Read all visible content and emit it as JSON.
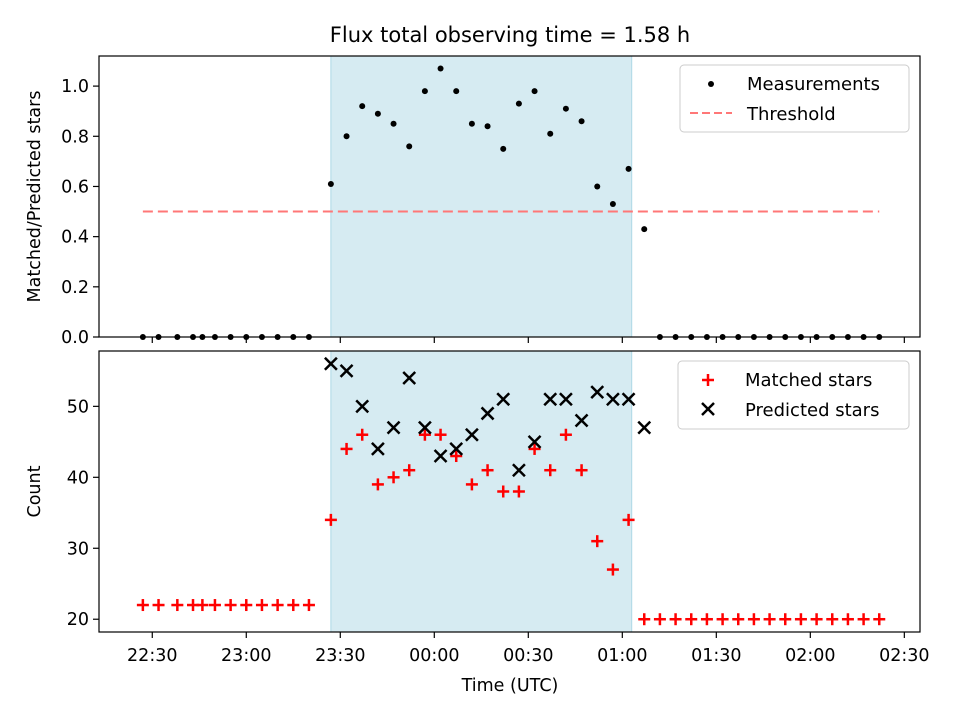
{
  "figure": {
    "title": "Flux total observing time = 1.58 h",
    "xlabel": "Time (UTC)",
    "x_tick_labels": [
      "22:30",
      "23:00",
      "23:30",
      "00:00",
      "00:30",
      "01:00",
      "01:30",
      "02:00",
      "02:30"
    ]
  },
  "chart_data": [
    {
      "type": "scatter",
      "panel": "top",
      "ylabel": "Matched/Predicted stars",
      "ylim": [
        0,
        1.12
      ],
      "y_ticks": [
        0.0,
        0.2,
        0.4,
        0.6,
        0.8,
        1.0
      ],
      "y_tick_labels": [
        "0.0",
        "0.2",
        "0.4",
        "0.6",
        "0.8",
        "1.0"
      ],
      "x_range": [
        "22:13",
        "02:35"
      ],
      "shaded_region": {
        "start": "23:27",
        "end": "01:03",
        "color": "#add8e6"
      },
      "legend": {
        "position": "top-right",
        "entries": [
          {
            "label": "Measurements",
            "marker": "dot",
            "color": "#000000"
          },
          {
            "label": "Threshold",
            "marker": "dashed-line",
            "color": "#ff7777"
          }
        ]
      },
      "threshold": {
        "value": 0.5,
        "x_start": "22:27",
        "x_end": "02:22",
        "color": "#ff7777"
      },
      "series": [
        {
          "name": "Measurements",
          "color": "#000000",
          "points": [
            [
              "22:27",
              0
            ],
            [
              "22:32",
              0
            ],
            [
              "22:38",
              0
            ],
            [
              "22:43",
              0
            ],
            [
              "22:46",
              0
            ],
            [
              "22:50",
              0
            ],
            [
              "22:55",
              0
            ],
            [
              "23:00",
              0
            ],
            [
              "23:05",
              0
            ],
            [
              "23:10",
              0
            ],
            [
              "23:15",
              0
            ],
            [
              "23:20",
              0
            ],
            [
              "23:27",
              0.61
            ],
            [
              "23:32",
              0.8
            ],
            [
              "23:37",
              0.92
            ],
            [
              "23:42",
              0.89
            ],
            [
              "23:47",
              0.85
            ],
            [
              "23:52",
              0.76
            ],
            [
              "23:57",
              0.98
            ],
            [
              "00:02",
              1.07
            ],
            [
              "00:07",
              0.98
            ],
            [
              "00:12",
              0.85
            ],
            [
              "00:17",
              0.84
            ],
            [
              "00:22",
              0.75
            ],
            [
              "00:27",
              0.93
            ],
            [
              "00:32",
              0.98
            ],
            [
              "00:37",
              0.81
            ],
            [
              "00:42",
              0.91
            ],
            [
              "00:47",
              0.86
            ],
            [
              "00:52",
              0.6
            ],
            [
              "00:57",
              0.53
            ],
            [
              "01:02",
              0.67
            ],
            [
              "01:07",
              0.43
            ],
            [
              "01:12",
              0
            ],
            [
              "01:17",
              0
            ],
            [
              "01:22",
              0
            ],
            [
              "01:27",
              0
            ],
            [
              "01:32",
              0
            ],
            [
              "01:37",
              0
            ],
            [
              "01:42",
              0
            ],
            [
              "01:47",
              0
            ],
            [
              "01:52",
              0
            ],
            [
              "01:57",
              0
            ],
            [
              "02:02",
              0
            ],
            [
              "02:07",
              0
            ],
            [
              "02:12",
              0
            ],
            [
              "02:17",
              0
            ],
            [
              "02:22",
              0
            ]
          ]
        }
      ]
    },
    {
      "type": "scatter",
      "panel": "bottom",
      "ylabel": "Count",
      "ylim": [
        18.2,
        57.8
      ],
      "y_ticks": [
        20,
        30,
        40,
        50
      ],
      "y_tick_labels": [
        "20",
        "30",
        "40",
        "50"
      ],
      "x_range": [
        "22:13",
        "02:35"
      ],
      "shaded_region": {
        "start": "23:27",
        "end": "01:03",
        "color": "#add8e6"
      },
      "legend": {
        "position": "top-right",
        "entries": [
          {
            "label": "Matched stars",
            "marker": "plus",
            "color": "#ff0000"
          },
          {
            "label": "Predicted stars",
            "marker": "x",
            "color": "#000000"
          }
        ]
      },
      "series": [
        {
          "name": "Matched stars",
          "marker": "plus",
          "color": "#ff0000",
          "points": [
            [
              "22:27",
              22
            ],
            [
              "22:32",
              22
            ],
            [
              "22:38",
              22
            ],
            [
              "22:43",
              22
            ],
            [
              "22:46",
              22
            ],
            [
              "22:50",
              22
            ],
            [
              "22:55",
              22
            ],
            [
              "23:00",
              22
            ],
            [
              "23:05",
              22
            ],
            [
              "23:10",
              22
            ],
            [
              "23:15",
              22
            ],
            [
              "23:20",
              22
            ],
            [
              "23:27",
              34
            ],
            [
              "23:32",
              44
            ],
            [
              "23:37",
              46
            ],
            [
              "23:42",
              39
            ],
            [
              "23:47",
              40
            ],
            [
              "23:52",
              41
            ],
            [
              "23:57",
              46
            ],
            [
              "00:02",
              46
            ],
            [
              "00:07",
              43
            ],
            [
              "00:12",
              39
            ],
            [
              "00:17",
              41
            ],
            [
              "00:22",
              38
            ],
            [
              "00:27",
              38
            ],
            [
              "00:32",
              44
            ],
            [
              "00:37",
              41
            ],
            [
              "00:42",
              46
            ],
            [
              "00:47",
              41
            ],
            [
              "00:52",
              31
            ],
            [
              "00:57",
              27
            ],
            [
              "01:02",
              34
            ],
            [
              "01:07",
              20
            ],
            [
              "01:12",
              20
            ],
            [
              "01:17",
              20
            ],
            [
              "01:22",
              20
            ],
            [
              "01:27",
              20
            ],
            [
              "01:32",
              20
            ],
            [
              "01:37",
              20
            ],
            [
              "01:42",
              20
            ],
            [
              "01:47",
              20
            ],
            [
              "01:52",
              20
            ],
            [
              "01:57",
              20
            ],
            [
              "02:02",
              20
            ],
            [
              "02:07",
              20
            ],
            [
              "02:12",
              20
            ],
            [
              "02:17",
              20
            ],
            [
              "02:22",
              20
            ]
          ]
        },
        {
          "name": "Predicted stars",
          "marker": "x",
          "color": "#000000",
          "points": [
            [
              "23:27",
              56
            ],
            [
              "23:32",
              55
            ],
            [
              "23:37",
              50
            ],
            [
              "23:42",
              44
            ],
            [
              "23:47",
              47
            ],
            [
              "23:52",
              54
            ],
            [
              "23:57",
              47
            ],
            [
              "00:02",
              43
            ],
            [
              "00:07",
              44
            ],
            [
              "00:12",
              46
            ],
            [
              "00:17",
              49
            ],
            [
              "00:22",
              51
            ],
            [
              "00:27",
              41
            ],
            [
              "00:32",
              45
            ],
            [
              "00:37",
              51
            ],
            [
              "00:42",
              51
            ],
            [
              "00:47",
              48
            ],
            [
              "00:52",
              52
            ],
            [
              "00:57",
              51
            ],
            [
              "01:02",
              51
            ],
            [
              "01:07",
              47
            ]
          ]
        }
      ]
    }
  ]
}
